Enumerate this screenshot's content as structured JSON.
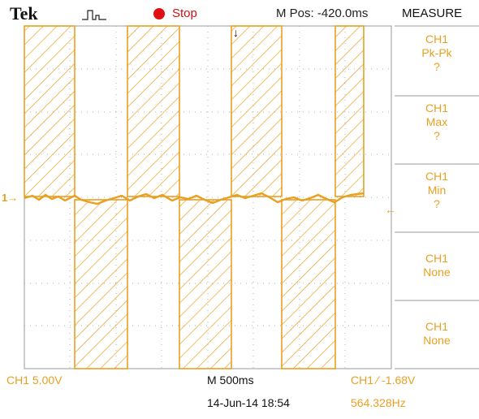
{
  "header": {
    "brand": "Tek",
    "acq_icon": "pulse-waveform-icon",
    "trigger_state": "Stop",
    "horizontal_position": "M Pos: -420.0ms",
    "menu_title": "MEASURE"
  },
  "measure": [
    {
      "channel": "CH1",
      "type": "Pk-Pk",
      "value": "?"
    },
    {
      "channel": "CH1",
      "type": "Max",
      "value": "?"
    },
    {
      "channel": "CH1",
      "type": "Min",
      "value": "?"
    },
    {
      "channel": "CH1",
      "type": "None",
      "value": ""
    },
    {
      "channel": "CH1",
      "type": "None",
      "value": ""
    }
  ],
  "footer": {
    "ch1_scale": "CH1  5.00V",
    "timebase": "M 500ms",
    "date_time": "14-Jun-14 18:54",
    "trigger_info": "CH1 ∕ -1.68V",
    "frequency": "564.328Hz"
  },
  "markers": {
    "ch1_ground": "1→",
    "trigger_level": "←",
    "trigger_position": "↓"
  },
  "colors": {
    "trace": "#e9a020",
    "grid": "#9a9a9a",
    "stop": "#e01010"
  }
}
